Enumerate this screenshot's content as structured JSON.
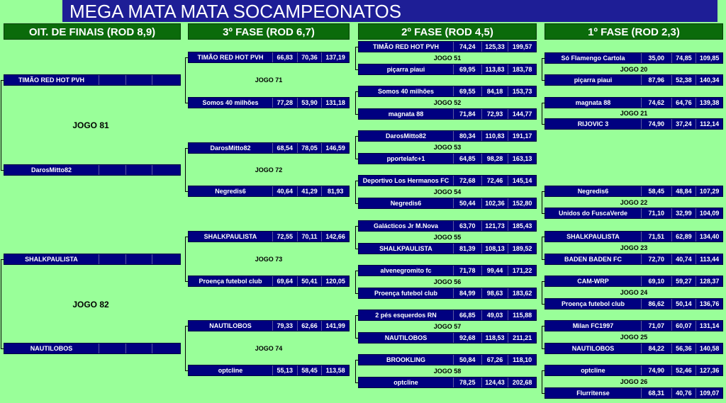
{
  "title": "MEGA MATA MATA SOCAMPEONATOS",
  "rounds": [
    {
      "header": "OIT. DE FINAIS (ROD 8,9)",
      "matches": [
        {
          "label": "JOGO 81",
          "teams": [
            {
              "name": "TIMÃO RED HOT PVH"
            },
            {
              "name": "DarosMitto82"
            }
          ]
        },
        {
          "label": "JOGO 82",
          "teams": [
            {
              "name": "SHALKPAULISTA"
            },
            {
              "name": "NAUTILOBOS"
            }
          ]
        }
      ]
    },
    {
      "header": "3º FASE (ROD 6,7)",
      "matches": [
        {
          "label": "JOGO 71",
          "teams": [
            {
              "name": "TIMÃO RED HOT PVH",
              "scores": [
                "66,83",
                "70,36",
                "137,19"
              ]
            },
            {
              "name": "Somos 40 milhões",
              "scores": [
                "77,28",
                "53,90",
                "131,18"
              ]
            }
          ]
        },
        {
          "label": "JOGO 72",
          "teams": [
            {
              "name": "DarosMitto82",
              "scores": [
                "68,54",
                "78,05",
                "146,59"
              ]
            },
            {
              "name": "Negredis6",
              "scores": [
                "40,64",
                "41,29",
                "81,93"
              ]
            }
          ]
        },
        {
          "label": "JOGO 73",
          "teams": [
            {
              "name": "SHALKPAULISTA",
              "scores": [
                "72,55",
                "70,11",
                "142,66"
              ]
            },
            {
              "name": "Proença futebol club",
              "scores": [
                "69,64",
                "50,41",
                "120,05"
              ]
            }
          ]
        },
        {
          "label": "JOGO 74",
          "teams": [
            {
              "name": "NAUTILOBOS",
              "scores": [
                "79,33",
                "62,66",
                "141,99"
              ]
            },
            {
              "name": "optcline",
              "scores": [
                "55,13",
                "58,45",
                "113,58"
              ]
            }
          ]
        }
      ]
    },
    {
      "header": "2º FASE (ROD 4,5)",
      "matches": [
        {
          "label": "JOGO 51",
          "teams": [
            {
              "name": "TIMÃO RED HOT PVH",
              "scores": [
                "74,24",
                "125,33",
                "199,57"
              ]
            },
            {
              "name": "piçarra piaui",
              "scores": [
                "69,95",
                "113,83",
                "183,78"
              ]
            }
          ]
        },
        {
          "label": "JOGO 52",
          "teams": [
            {
              "name": "Somos 40 milhões",
              "scores": [
                "69,55",
                "84,18",
                "153,73"
              ]
            },
            {
              "name": "magnata 88",
              "scores": [
                "71,84",
                "72,93",
                "144,77"
              ]
            }
          ]
        },
        {
          "label": "JOGO 53",
          "teams": [
            {
              "name": "DarosMitto82",
              "scores": [
                "80,34",
                "110,83",
                "191,17"
              ]
            },
            {
              "name": "pportelafc+1",
              "scores": [
                "64,85",
                "98,28",
                "163,13"
              ]
            }
          ]
        },
        {
          "label": "JOGO 54",
          "teams": [
            {
              "name": "Deportivo Los Hermanos FC",
              "scores": [
                "72,68",
                "72,46",
                "145,14"
              ]
            },
            {
              "name": "Negredis6",
              "scores": [
                "50,44",
                "102,36",
                "152,80"
              ]
            }
          ]
        },
        {
          "label": "JOGO 55",
          "teams": [
            {
              "name": "Galácticos Jr M.Nova",
              "scores": [
                "63,70",
                "121,73",
                "185,43"
              ]
            },
            {
              "name": "SHALKPAULISTA",
              "scores": [
                "81,39",
                "108,13",
                "189,52"
              ]
            }
          ]
        },
        {
          "label": "JOGO 56",
          "teams": [
            {
              "name": "alvenegromito fc",
              "scores": [
                "71,78",
                "99,44",
                "171,22"
              ]
            },
            {
              "name": "Proença futebol club",
              "scores": [
                "84,99",
                "98,63",
                "183,62"
              ]
            }
          ]
        },
        {
          "label": "JOGO 57",
          "teams": [
            {
              "name": "2 pés esquerdos RN",
              "scores": [
                "66,85",
                "49,03",
                "115,88"
              ]
            },
            {
              "name": "NAUTILOBOS",
              "scores": [
                "92,68",
                "118,53",
                "211,21"
              ]
            }
          ]
        },
        {
          "label": "JOGO 58",
          "teams": [
            {
              "name": "BROOKLING",
              "scores": [
                "50,84",
                "67,26",
                "118,10"
              ]
            },
            {
              "name": "optcline",
              "scores": [
                "78,25",
                "124,43",
                "202,68"
              ]
            }
          ]
        }
      ]
    },
    {
      "header": "1º FASE (ROD 2,3)",
      "matches": [
        {
          "label": "JOGO 20",
          "teams": [
            {
              "name": "Só Flamengo Cartola",
              "scores": [
                "35,00",
                "74,85",
                "109,85"
              ]
            },
            {
              "name": "piçarra piaui",
              "scores": [
                "87,96",
                "52,38",
                "140,34"
              ]
            }
          ]
        },
        {
          "label": "JOGO 21",
          "teams": [
            {
              "name": "magnata 88",
              "scores": [
                "74,62",
                "64,76",
                "139,38"
              ]
            },
            {
              "name": "RIJOVIC 3",
              "scores": [
                "74,90",
                "37,24",
                "112,14"
              ]
            }
          ]
        },
        {
          "label": "JOGO 22",
          "teams": [
            {
              "name": "Negredis6",
              "scores": [
                "58,45",
                "48,84",
                "107,29"
              ]
            },
            {
              "name": "Unidos do FuscaVerde",
              "scores": [
                "71,10",
                "32,99",
                "104,09"
              ]
            }
          ]
        },
        {
          "label": "JOGO 23",
          "teams": [
            {
              "name": "SHALKPAULISTA",
              "scores": [
                "71,51",
                "62,89",
                "134,40"
              ]
            },
            {
              "name": "BADEN BADEN FC",
              "scores": [
                "72,70",
                "40,74",
                "113,44"
              ]
            }
          ]
        },
        {
          "label": "JOGO 24",
          "teams": [
            {
              "name": "CAM-WRP",
              "scores": [
                "69,10",
                "59,27",
                "128,37"
              ]
            },
            {
              "name": "Proença futebol club",
              "scores": [
                "86,62",
                "50,14",
                "136,76"
              ]
            }
          ]
        },
        {
          "label": "JOGO 25",
          "teams": [
            {
              "name": "Milan FC1997",
              "scores": [
                "71,07",
                "60,07",
                "131,14"
              ]
            },
            {
              "name": "NAUTILOBOS",
              "scores": [
                "84,22",
                "56,36",
                "140,58"
              ]
            }
          ]
        },
        {
          "label": "JOGO 26",
          "teams": [
            {
              "name": "optcline",
              "scores": [
                "74,90",
                "52,46",
                "127,36"
              ]
            },
            {
              "name": "Flurritense",
              "scores": [
                "68,31",
                "40,76",
                "109,07"
              ]
            }
          ]
        }
      ]
    }
  ]
}
